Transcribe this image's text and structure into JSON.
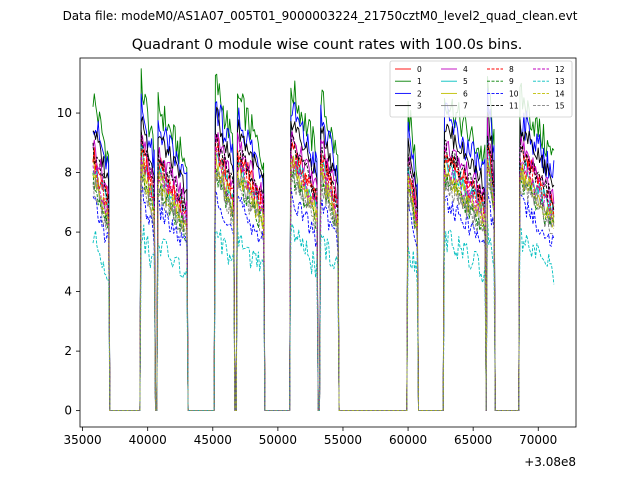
{
  "header": {
    "data_file_label": "Data file: modeM0/AS1A07_005T01_9000003224_21750cztM0_level2_quad_clean.evt"
  },
  "chart_data": {
    "type": "line",
    "title": "Quadrant 0 module wise count rates with 100.0s bins.",
    "xlabel": "",
    "ylabel": "",
    "x_offset_label": "+3.08e8",
    "xlim": [
      34800,
      72900
    ],
    "ylim": [
      -0.55,
      11.85
    ],
    "x_ticks": [
      35000,
      40000,
      45000,
      50000,
      55000,
      60000,
      65000,
      70000
    ],
    "x_tick_labels": [
      "35000",
      "40000",
      "45000",
      "50000",
      "55000",
      "60000",
      "65000",
      "70000"
    ],
    "y_ticks": [
      0,
      2,
      4,
      6,
      8,
      10
    ],
    "y_tick_labels": [
      "0",
      "2",
      "4",
      "6",
      "8",
      "10"
    ],
    "legend_position": "top-right",
    "data_start": 35800,
    "bin_width": 100,
    "segments": [
      [
        35800,
        37000
      ],
      [
        39500,
        40500
      ],
      [
        40800,
        43000
      ],
      [
        45200,
        46600
      ],
      [
        46900,
        48900
      ],
      [
        51000,
        53000
      ],
      [
        53300,
        54600
      ],
      [
        60000,
        60700
      ],
      [
        62800,
        65900
      ],
      [
        66100,
        66600
      ],
      [
        68600,
        71200
      ]
    ],
    "segment_peak_pattern": [
      1.0,
      1.04,
      0.97,
      1.05,
      1.0,
      1.03,
      1.0,
      0.96,
      1.0,
      1.06,
      1.0
    ],
    "series": [
      {
        "name": "0",
        "level": 7.9,
        "color": "#ff0000",
        "dash": "solid"
      },
      {
        "name": "1",
        "level": 9.6,
        "color": "#008000",
        "dash": "solid"
      },
      {
        "name": "2",
        "level": 9.0,
        "color": "#0000ff",
        "dash": "solid"
      },
      {
        "name": "3",
        "level": 8.7,
        "color": "#000000",
        "dash": "solid"
      },
      {
        "name": "4",
        "level": 8.2,
        "color": "#bf00bf",
        "dash": "solid"
      },
      {
        "name": "5",
        "level": 7.6,
        "color": "#00bfbf",
        "dash": "solid"
      },
      {
        "name": "6",
        "level": 7.4,
        "color": "#bfbf00",
        "dash": "solid"
      },
      {
        "name": "7",
        "level": 7.1,
        "color": "#808080",
        "dash": "solid"
      },
      {
        "name": "8",
        "level": 7.7,
        "color": "#ff0000",
        "dash": "dashed"
      },
      {
        "name": "9",
        "level": 7.0,
        "color": "#008000",
        "dash": "dashed"
      },
      {
        "name": "10",
        "level": 6.4,
        "color": "#0000ff",
        "dash": "dashed"
      },
      {
        "name": "11",
        "level": 8.0,
        "color": "#000000",
        "dash": "dashed"
      },
      {
        "name": "12",
        "level": 7.5,
        "color": "#bf00bf",
        "dash": "dashed"
      },
      {
        "name": "13",
        "level": 5.3,
        "color": "#00bfbf",
        "dash": "dashed"
      },
      {
        "name": "14",
        "level": 7.2,
        "color": "#bfbf00",
        "dash": "dashed"
      },
      {
        "name": "15",
        "level": 6.9,
        "color": "#808080",
        "dash": "dashed"
      }
    ]
  }
}
